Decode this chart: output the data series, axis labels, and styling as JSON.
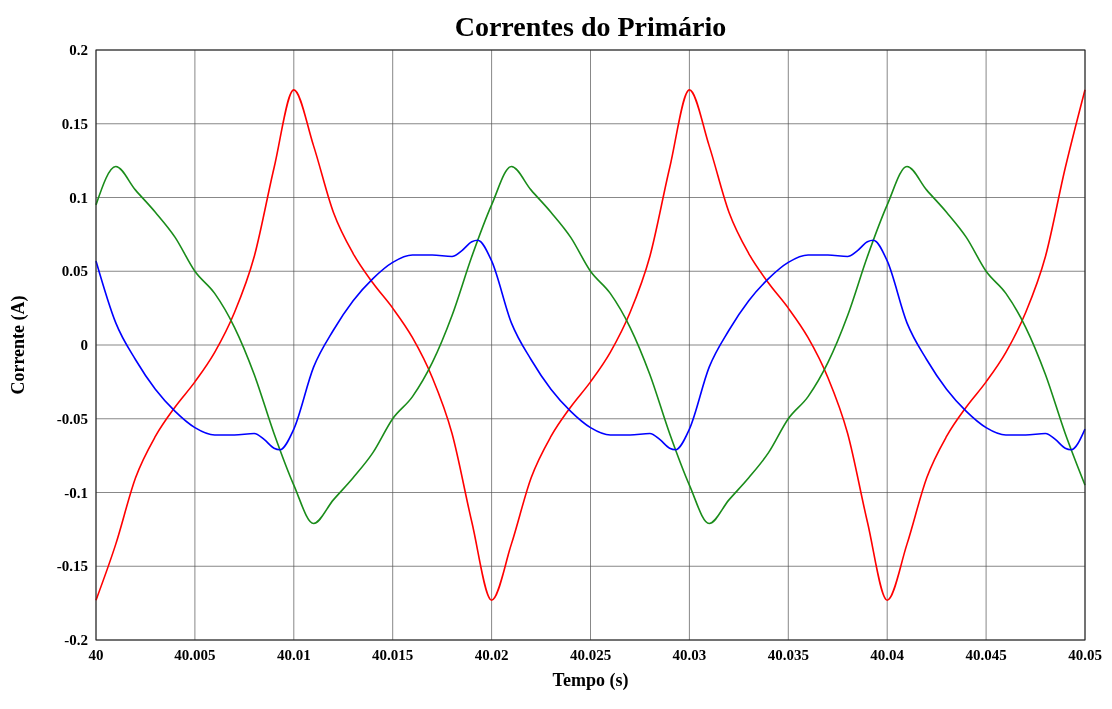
{
  "chart_data": {
    "type": "line",
    "title": "Correntes do Primário",
    "xlabel": "Tempo (s)",
    "ylabel": "Corrente (A)",
    "x": [
      40,
      40.001,
      40.002,
      40.003,
      40.004,
      40.005,
      40.006,
      40.007,
      40.008,
      40.009,
      40.01,
      40.011,
      40.012,
      40.013,
      40.014,
      40.015,
      40.016,
      40.017,
      40.018,
      40.019,
      40.02,
      40.021,
      40.022,
      40.023,
      40.024,
      40.025,
      40.026,
      40.027,
      40.028,
      40.029,
      40.03,
      40.031,
      40.032,
      40.033,
      40.034,
      40.035,
      40.036,
      40.037,
      40.038,
      40.039,
      40.04,
      40.041,
      40.042,
      40.043,
      40.044,
      40.045,
      40.046,
      40.047,
      40.048,
      40.049,
      40.05
    ],
    "series": [
      {
        "color": "#ff0000",
        "values": [
          -0.173,
          -0.135,
          -0.09,
          -0.062,
          -0.042,
          -0.025,
          -0.005,
          0.022,
          0.06,
          0.12,
          0.173,
          0.135,
          0.09,
          0.062,
          0.042,
          0.025,
          0.005,
          -0.022,
          -0.06,
          -0.12,
          -0.173,
          -0.135,
          -0.09,
          -0.062,
          -0.042,
          -0.025,
          -0.005,
          0.022,
          0.06,
          0.12,
          0.173,
          0.135,
          0.09,
          0.062,
          0.042,
          0.025,
          0.005,
          -0.022,
          -0.06,
          -0.12,
          -0.173,
          -0.135,
          -0.09,
          -0.062,
          -0.042,
          -0.025,
          -0.005,
          0.022,
          0.06,
          0.12,
          0.173
        ]
      },
      {
        "color": "#1a8c1a",
        "values": [
          0.095,
          0.121,
          0.105,
          0.09,
          0.073,
          0.05,
          0.035,
          0.012,
          -0.02,
          -0.06,
          -0.095,
          -0.121,
          -0.105,
          -0.09,
          -0.073,
          -0.05,
          -0.035,
          -0.012,
          0.02,
          0.06,
          0.095,
          0.121,
          0.105,
          0.09,
          0.073,
          0.05,
          0.035,
          0.012,
          -0.02,
          -0.06,
          -0.095,
          -0.121,
          -0.105,
          -0.09,
          -0.073,
          -0.05,
          -0.035,
          -0.012,
          0.02,
          0.06,
          0.095,
          0.121,
          0.105,
          0.09,
          0.073,
          0.05,
          0.035,
          0.012,
          -0.02,
          -0.06,
          -0.095
        ]
      },
      {
        "color": "#0000ff",
        "x": [
          40,
          40.001,
          40.002,
          40.003,
          40.004,
          40.005,
          40.006,
          40.007,
          40.008,
          40.0085,
          40.009,
          40.0093,
          40.01,
          40.011,
          40.012,
          40.013,
          40.014,
          40.015,
          40.016,
          40.017,
          40.018,
          40.0185,
          40.019,
          40.0193,
          40.02,
          40.021,
          40.022,
          40.023,
          40.024,
          40.025,
          40.026,
          40.027,
          40.028,
          40.0285,
          40.029,
          40.0293,
          40.03,
          40.031,
          40.032,
          40.033,
          40.034,
          40.035,
          40.036,
          40.037,
          40.038,
          40.0385,
          40.039,
          40.0393,
          40.04,
          40.041,
          40.042,
          40.043,
          40.044,
          40.045,
          40.046,
          40.047,
          40.048,
          40.0485,
          40.049,
          40.0493,
          40.05
        ],
        "values": [
          0.057,
          0.015,
          -0.01,
          -0.03,
          -0.045,
          -0.056,
          -0.061,
          -0.061,
          -0.06,
          -0.064,
          -0.07,
          -0.071,
          -0.057,
          -0.015,
          0.01,
          0.03,
          0.045,
          0.056,
          0.061,
          0.061,
          0.06,
          0.064,
          0.07,
          0.071,
          0.057,
          0.015,
          -0.01,
          -0.03,
          -0.045,
          -0.056,
          -0.061,
          -0.061,
          -0.06,
          -0.064,
          -0.07,
          -0.071,
          -0.057,
          -0.015,
          0.01,
          0.03,
          0.045,
          0.056,
          0.061,
          0.061,
          0.06,
          0.064,
          0.07,
          0.071,
          0.057,
          0.015,
          -0.01,
          -0.03,
          -0.045,
          -0.056,
          -0.061,
          -0.061,
          -0.06,
          -0.064,
          -0.07,
          -0.071,
          -0.057
        ]
      }
    ],
    "xlim": [
      40,
      40.05
    ],
    "xticks": [
      40,
      40.005,
      40.01,
      40.015,
      40.02,
      40.025,
      40.03,
      40.035,
      40.04,
      40.045,
      40.05
    ],
    "ylim": [
      -0.2,
      0.2
    ],
    "yticks": [
      -0.2,
      -0.15,
      -0.1,
      -0.05,
      0,
      0.05,
      0.1,
      0.15,
      0.2
    ],
    "grid": true,
    "line_style": "solid"
  }
}
